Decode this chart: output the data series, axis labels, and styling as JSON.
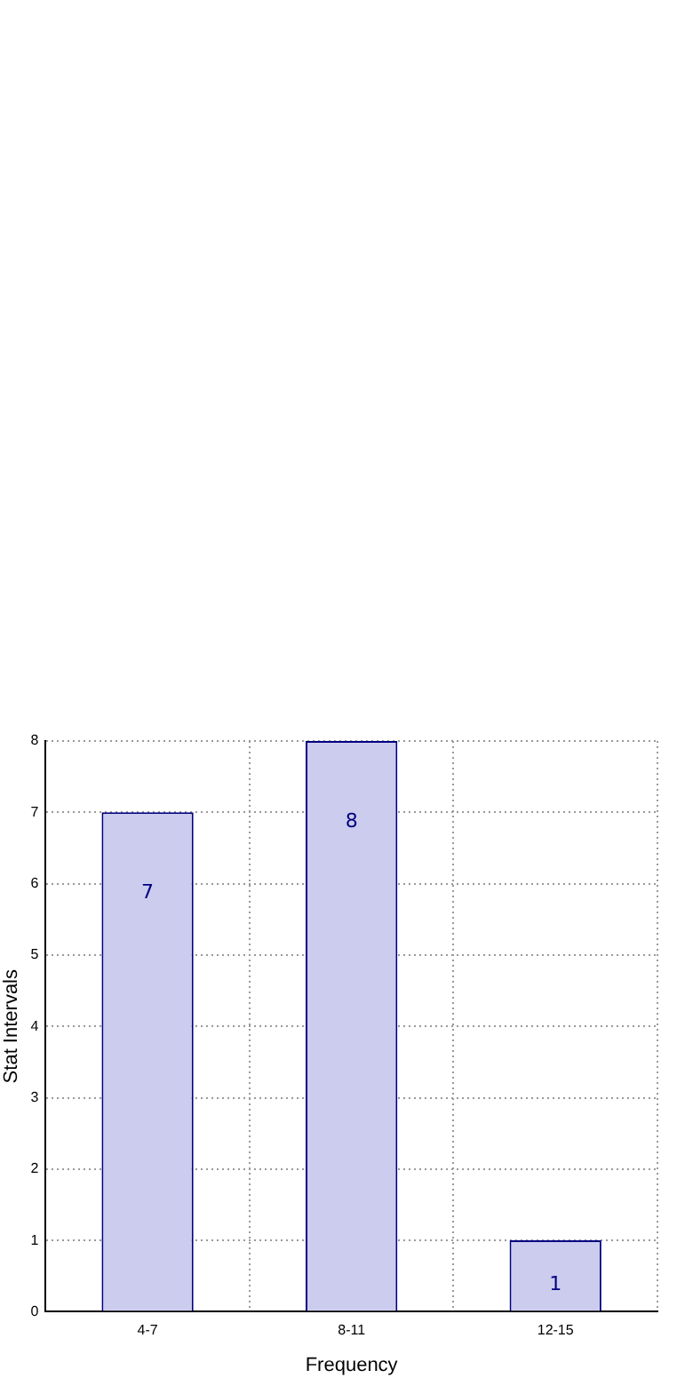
{
  "chart_data": {
    "type": "bar",
    "xlabel": "Frequency",
    "ylabel": "Stat Intervals",
    "categories": [
      "4-7",
      "8-11",
      "12-15"
    ],
    "values": [
      7,
      8,
      1
    ],
    "color": "#ccccee",
    "ylim": [
      0,
      8
    ],
    "yticks": [
      0,
      1,
      2,
      3,
      4,
      5,
      6,
      7,
      8
    ],
    "grid": true,
    "data_labels": true,
    "legend": false
  }
}
